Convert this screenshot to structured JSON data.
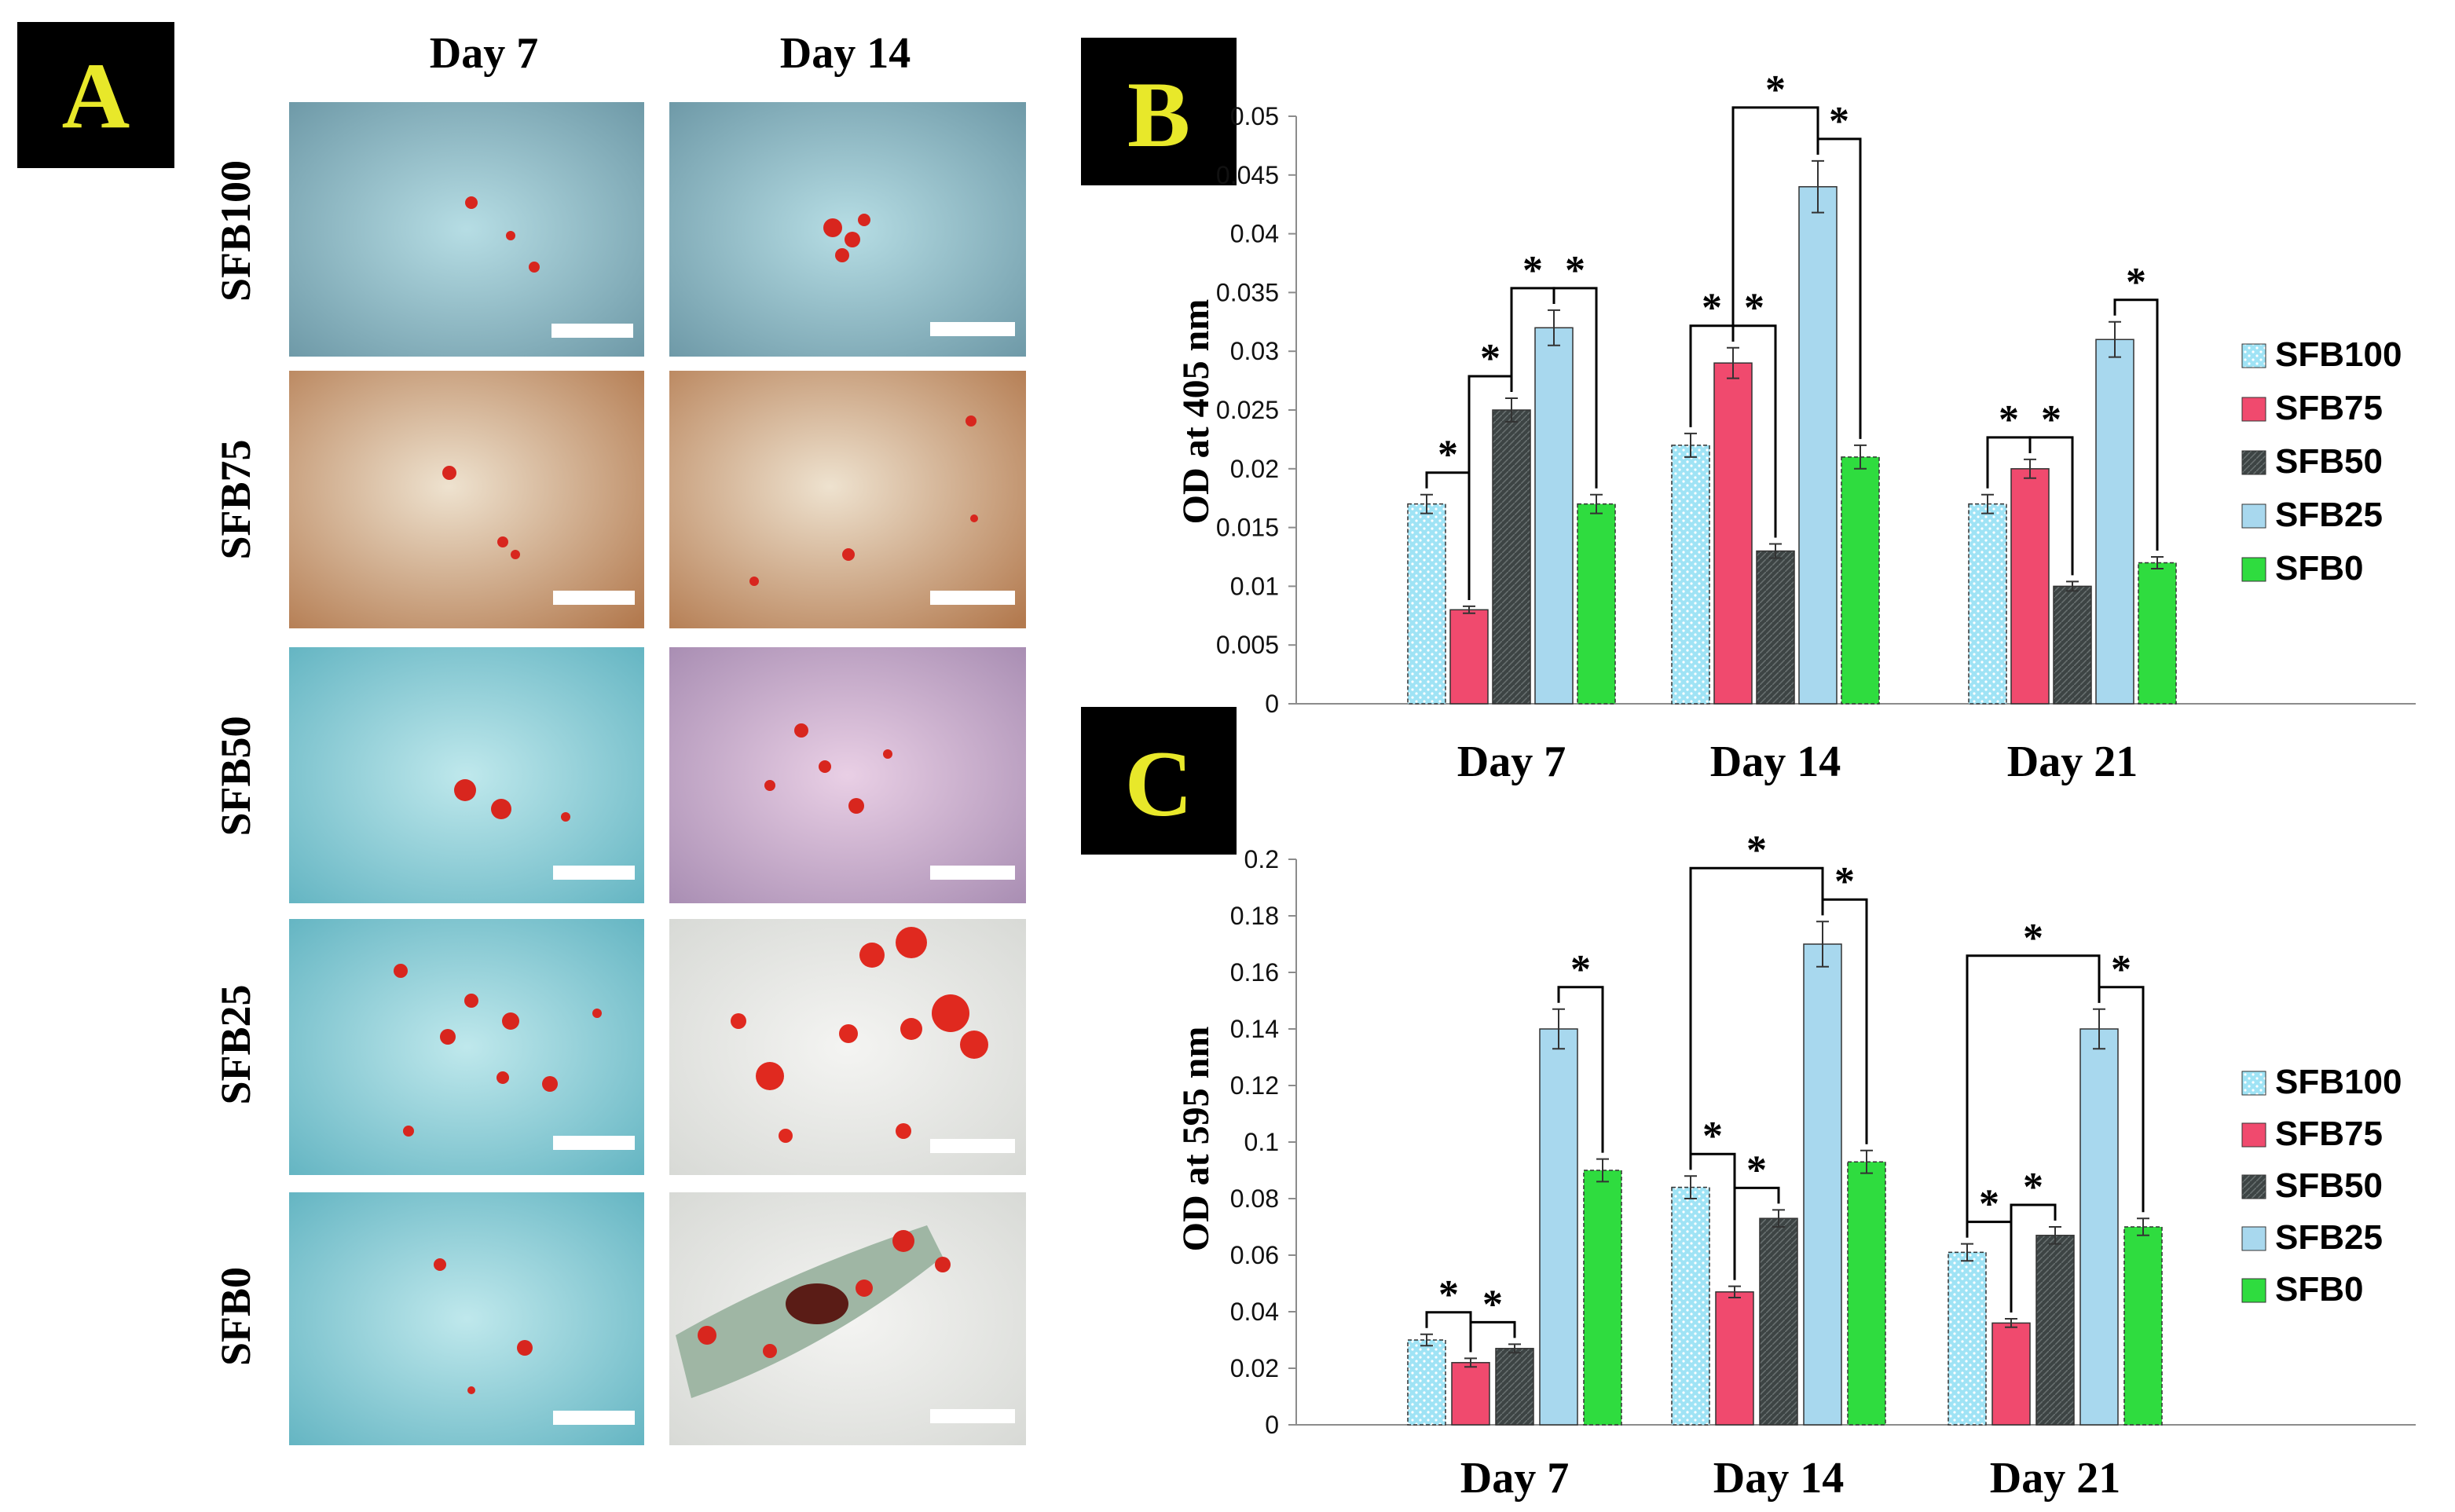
{
  "panel_a": {
    "tag": "A",
    "columns": [
      "Day 7",
      "Day 14"
    ],
    "rows": [
      "SFB100",
      "SFB75",
      "SFB50",
      "SFB25",
      "SFB0"
    ]
  },
  "colors": {
    "SFB100": "#9fe3f5",
    "SFB75": "#f04a6e",
    "SFB50": "#3d4444",
    "SFB25": "#a8d8ee",
    "SFB0": "#2fdc3f",
    "panel_bg": "#000000",
    "panel_text": "#e8e82a"
  },
  "chart_data": [
    {
      "id": "B",
      "type": "bar",
      "tag": "B",
      "ylabel": "OD at 405 nm",
      "ylim": [
        0,
        0.05
      ],
      "yticks": [
        "0",
        "0.005",
        "0.01",
        "0.015",
        "0.02",
        "0.025",
        "0.03",
        "0.035",
        "0.04",
        "0.045",
        "0.05"
      ],
      "categories": [
        "Day 7",
        "Day 14",
        "Day 21"
      ],
      "legend_position": "right",
      "series": [
        {
          "name": "SFB100",
          "values": [
            0.017,
            0.022,
            0.017
          ],
          "errors": [
            0.0008,
            0.001,
            0.0008
          ]
        },
        {
          "name": "SFB75",
          "values": [
            0.008,
            0.029,
            0.02
          ],
          "errors": [
            0.0003,
            0.0013,
            0.0008
          ]
        },
        {
          "name": "SFB50",
          "values": [
            0.025,
            0.013,
            0.01
          ],
          "errors": [
            0.001,
            0.0006,
            0.0004
          ]
        },
        {
          "name": "SFB25",
          "values": [
            0.032,
            0.044,
            0.031
          ],
          "errors": [
            0.0015,
            0.0022,
            0.0015
          ]
        },
        {
          "name": "SFB0",
          "values": [
            0.017,
            0.021,
            0.012
          ],
          "errors": [
            0.0008,
            0.001,
            0.0005
          ]
        }
      ],
      "significance": [
        {
          "group": 0,
          "from": 0,
          "to": 1,
          "mark": "*"
        },
        {
          "group": 0,
          "from": 1,
          "to": 2,
          "mark": "*"
        },
        {
          "group": 0,
          "from": 2,
          "to": 3,
          "mark": "*"
        },
        {
          "group": 0,
          "from": 3,
          "to": 4,
          "mark": "*"
        },
        {
          "group": 1,
          "from": 0,
          "to": 1,
          "mark": "*"
        },
        {
          "group": 1,
          "from": 1,
          "to": 2,
          "mark": "*"
        },
        {
          "group": 1,
          "from": 1,
          "to": 3,
          "mark": "*"
        },
        {
          "group": 1,
          "from": 3,
          "to": 4,
          "mark": "*"
        },
        {
          "group": 2,
          "from": 0,
          "to": 1,
          "mark": "*"
        },
        {
          "group": 2,
          "from": 1,
          "to": 2,
          "mark": "*"
        },
        {
          "group": 2,
          "from": 3,
          "to": 4,
          "mark": "*"
        }
      ]
    },
    {
      "id": "C",
      "type": "bar",
      "tag": "C",
      "ylabel": "OD at 595 nm",
      "ylim": [
        0,
        0.2
      ],
      "yticks": [
        "0",
        "0.02",
        "0.04",
        "0.06",
        "0.08",
        "0.1",
        "0.12",
        "0.14",
        "0.16",
        "0.18",
        "0.2"
      ],
      "categories": [
        "Day 7",
        "Day 14",
        "Day 21"
      ],
      "legend_position": "right",
      "series": [
        {
          "name": "SFB100",
          "values": [
            0.03,
            0.084,
            0.061
          ],
          "errors": [
            0.002,
            0.004,
            0.003
          ]
        },
        {
          "name": "SFB75",
          "values": [
            0.022,
            0.047,
            0.036
          ],
          "errors": [
            0.0015,
            0.002,
            0.0015
          ]
        },
        {
          "name": "SFB50",
          "values": [
            0.027,
            0.073,
            0.067
          ],
          "errors": [
            0.0015,
            0.003,
            0.003
          ]
        },
        {
          "name": "SFB25",
          "values": [
            0.14,
            0.17,
            0.14
          ],
          "errors": [
            0.007,
            0.008,
            0.007
          ]
        },
        {
          "name": "SFB0",
          "values": [
            0.09,
            0.093,
            0.07
          ],
          "errors": [
            0.004,
            0.004,
            0.003
          ]
        }
      ],
      "significance": [
        {
          "group": 0,
          "from": 0,
          "to": 1,
          "mark": "*"
        },
        {
          "group": 0,
          "from": 1,
          "to": 2,
          "mark": "*"
        },
        {
          "group": 0,
          "from": 3,
          "to": 4,
          "mark": "*"
        },
        {
          "group": 1,
          "from": 0,
          "to": 1,
          "mark": "*"
        },
        {
          "group": 1,
          "from": 1,
          "to": 2,
          "mark": "*"
        },
        {
          "group": 1,
          "from": 0,
          "to": 3,
          "mark": "*"
        },
        {
          "group": 1,
          "from": 3,
          "to": 4,
          "mark": "*"
        },
        {
          "group": 2,
          "from": 0,
          "to": 1,
          "mark": "*"
        },
        {
          "group": 2,
          "from": 1,
          "to": 2,
          "mark": "*"
        },
        {
          "group": 2,
          "from": 0,
          "to": 3,
          "mark": "*"
        },
        {
          "group": 2,
          "from": 3,
          "to": 4,
          "mark": "*"
        }
      ]
    }
  ]
}
